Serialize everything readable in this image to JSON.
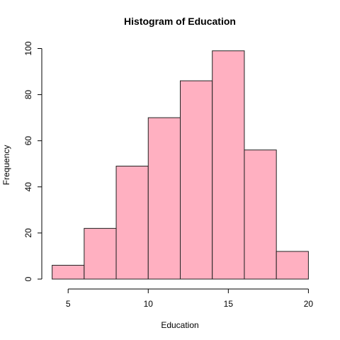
{
  "chart_data": {
    "type": "bar",
    "title": "Histogram of Education",
    "xlabel": "Education",
    "ylabel": "Frequency",
    "bin_edges": [
      4,
      6,
      8,
      10,
      12,
      14,
      16,
      18,
      20
    ],
    "values": [
      6,
      22,
      49,
      70,
      86,
      99,
      56,
      12
    ],
    "xlim": [
      4,
      20
    ],
    "ylim": [
      0,
      100
    ],
    "x_ticks": [
      5,
      10,
      15,
      20
    ],
    "y_ticks": [
      0,
      20,
      40,
      60,
      80,
      100
    ],
    "bar_color": "#ffb0c1",
    "grid": false
  }
}
